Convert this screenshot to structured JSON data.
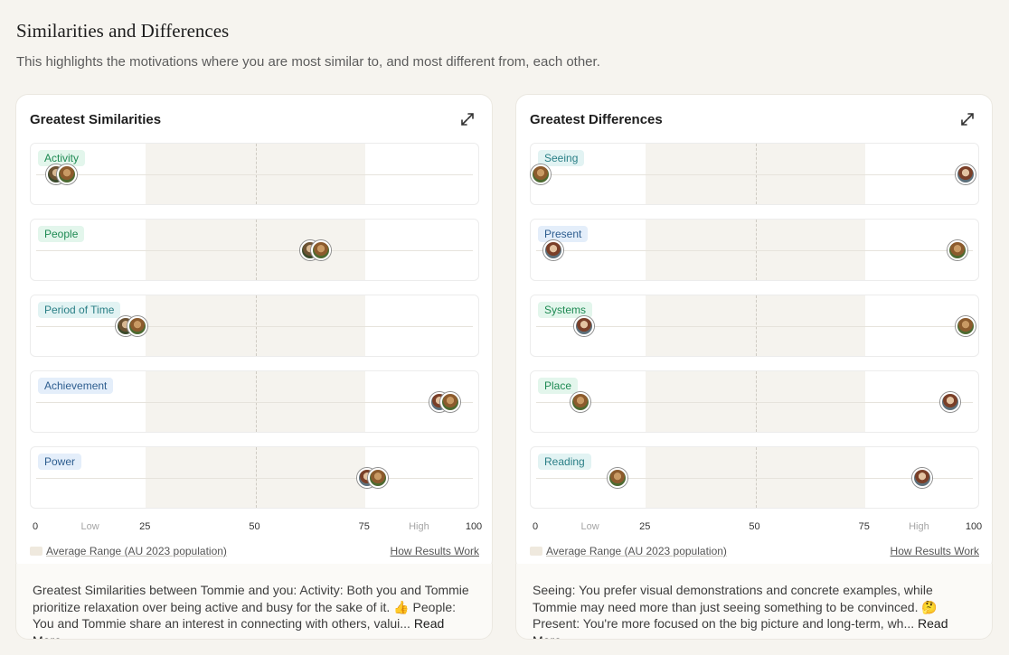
{
  "header": {
    "title": "Similarities and Differences",
    "subtitle": "This highlights the motivations where you are most similar to, and most different from, each other."
  },
  "axis": {
    "ticks": [
      "0",
      "25",
      "50",
      "75",
      "100"
    ],
    "low_label": "Low",
    "high_label": "High",
    "range_start": 25,
    "range_end": 75
  },
  "legend": {
    "label": "Average Range (AU 2023 population)",
    "link": "How Results Work"
  },
  "panels": [
    {
      "title": "Greatest Similarities",
      "rows": [
        {
          "label": "Activity",
          "color": "green",
          "markers": [
            {
              "value": 4.5,
              "avatar": "a1"
            },
            {
              "value": 7.0,
              "avatar": "a2"
            }
          ]
        },
        {
          "label": "People",
          "color": "green",
          "markers": [
            {
              "value": 62.5,
              "avatar": "a1"
            },
            {
              "value": 65.0,
              "avatar": "a2"
            }
          ]
        },
        {
          "label": "Period of Time",
          "color": "teal",
          "markers": [
            {
              "value": 20.5,
              "avatar": "a1"
            },
            {
              "value": 23.0,
              "avatar": "a2"
            }
          ]
        },
        {
          "label": "Achievement",
          "color": "blue",
          "markers": [
            {
              "value": 92.0,
              "avatar": "a3"
            },
            {
              "value": 94.5,
              "avatar": "a2"
            }
          ]
        },
        {
          "label": "Power",
          "color": "blue",
          "markers": [
            {
              "value": 75.5,
              "avatar": "a3"
            },
            {
              "value": 78.0,
              "avatar": "a2"
            }
          ]
        }
      ],
      "summary": "Greatest Similarities between Tommie and you: Activity: Both you and Tommie prioritize relaxation over being active and busy for the sake of it. 👍 People: You and Tommie share an interest in connecting with others, valui...",
      "read_more": "Read More"
    },
    {
      "title": "Greatest Differences",
      "rows": [
        {
          "label": "Seeing",
          "color": "teal",
          "markers": [
            {
              "value": 1.0,
              "avatar": "a2"
            },
            {
              "value": 98.0,
              "avatar": "a3"
            }
          ]
        },
        {
          "label": "Present",
          "color": "blue",
          "markers": [
            {
              "value": 4.0,
              "avatar": "a3"
            },
            {
              "value": 96.0,
              "avatar": "a2"
            }
          ]
        },
        {
          "label": "Systems",
          "color": "green",
          "markers": [
            {
              "value": 11.0,
              "avatar": "a3"
            },
            {
              "value": 98.0,
              "avatar": "a2"
            }
          ]
        },
        {
          "label": "Place",
          "color": "green",
          "markers": [
            {
              "value": 10.0,
              "avatar": "a2"
            },
            {
              "value": 94.5,
              "avatar": "a3"
            }
          ]
        },
        {
          "label": "Reading",
          "color": "teal",
          "markers": [
            {
              "value": 18.5,
              "avatar": "a2"
            },
            {
              "value": 88.0,
              "avatar": "a3"
            }
          ]
        }
      ],
      "summary": "Seeing: You prefer visual demonstrations and concrete examples, while Tommie may need more than just seeing something to be convinced. 🤔 Present: You're more focused on the big picture and long-term, wh...",
      "read_more": "Read More"
    }
  ]
}
